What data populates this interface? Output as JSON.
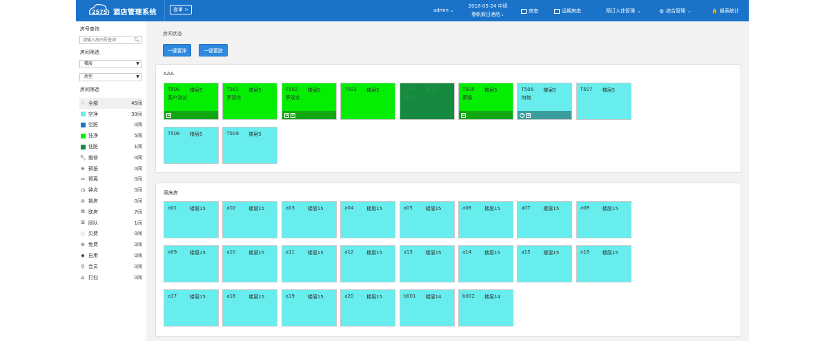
{
  "app": {
    "title": "酒店管理系统",
    "audit_label": "夜审 >",
    "user": "admin",
    "date": "2018-05-24 中班",
    "hotel": "春帆假日酒店"
  },
  "topnav": [
    {
      "label": "房态",
      "icon": "grid-icon"
    },
    {
      "label": "远期房态",
      "icon": "calendar-icon"
    },
    {
      "label": "预订入住管理",
      "icon": "person-icon"
    },
    {
      "label": "综合管理",
      "icon": "gear-icon"
    },
    {
      "label": "报表统计",
      "icon": "lock-icon"
    }
  ],
  "sidebar": {
    "room_query_label": "房号查询",
    "room_query_placeholder": "请输入房间号查询",
    "room_filter_label": "房间筛选",
    "floor_select": "楼层",
    "type_select": "房型",
    "status_filter_label": "房间筛选",
    "filters": [
      {
        "label": "全部",
        "count": "45间",
        "icon": "all-icon"
      },
      {
        "label": "空净",
        "count": "39间",
        "color": "#67eded"
      },
      {
        "label": "空脏",
        "count": "0间",
        "color": "#1b73c9"
      },
      {
        "label": "住净",
        "count": "5间",
        "color": "#04ee04"
      },
      {
        "label": "住脏",
        "count": "1间",
        "color": "#168a3f"
      },
      {
        "label": "维修",
        "count": "0间",
        "icon": "wrench-icon"
      },
      {
        "label": "预抵",
        "count": "0间",
        "icon": "arrive-icon"
      },
      {
        "label": "预离",
        "count": "0间",
        "icon": "depart-icon"
      },
      {
        "label": "钟点",
        "count": "0间",
        "icon": "clock-icon"
      },
      {
        "label": "锁房",
        "count": "0间",
        "icon": "lock-room-icon"
      },
      {
        "label": "联房",
        "count": "7间",
        "icon": "link-icon"
      },
      {
        "label": "团队",
        "count": "1间",
        "icon": "team-icon"
      },
      {
        "label": "欠费",
        "count": "0间",
        "icon": "debt-icon"
      },
      {
        "label": "免费",
        "count": "0间",
        "icon": "free-icon"
      },
      {
        "label": "自用",
        "count": "0间",
        "icon": "self-use-icon"
      },
      {
        "label": "会员",
        "count": "0间",
        "icon": "member-icon"
      },
      {
        "label": "打扫",
        "count": "0间",
        "icon": "clean-icon"
      }
    ]
  },
  "main": {
    "title": "房间状态",
    "btn_clean": "一键置净",
    "btn_dirty": "一键置脏",
    "sections": [
      {
        "title": "AAA",
        "rooms": [
          {
            "no": "T500",
            "floor": "楼层5",
            "guest": "客户测试",
            "status": "inclean",
            "badges": [
              "link"
            ]
          },
          {
            "no": "T501",
            "floor": "楼层5",
            "guest": "罗双龙",
            "status": "inclean",
            "badges": []
          },
          {
            "no": "T502",
            "floor": "楼层5",
            "guest": "罗双龙",
            "status": "inclean",
            "badges": [
              "link",
              "team"
            ]
          },
          {
            "no": "T503",
            "floor": "楼层5",
            "guest": "",
            "status": "inclean",
            "badges": []
          },
          {
            "no": "T504",
            "floor": "楼层5",
            "guest": "测试",
            "status": "indirty",
            "badges": []
          },
          {
            "no": "T505",
            "floor": "楼层5",
            "guest": "蔡锦",
            "status": "inclean",
            "badges": [
              "link"
            ]
          },
          {
            "no": "T506",
            "floor": "楼层5",
            "guest": "何物",
            "status": "clean",
            "badges": [
              "arrive",
              "link"
            ]
          },
          {
            "no": "T507",
            "floor": "楼层5",
            "guest": "",
            "status": "clean",
            "badges": []
          },
          {
            "no": "T508",
            "floor": "楼层5",
            "guest": "",
            "status": "clean",
            "badges": []
          },
          {
            "no": "T509",
            "floor": "楼层5",
            "guest": "",
            "status": "clean",
            "badges": []
          }
        ]
      },
      {
        "title": "双床房",
        "rooms": [
          {
            "no": "a01",
            "floor": "楼层15",
            "guest": "",
            "status": "clean",
            "badges": []
          },
          {
            "no": "a02",
            "floor": "楼层15",
            "guest": "",
            "status": "clean",
            "badges": []
          },
          {
            "no": "a03",
            "floor": "楼层15",
            "guest": "",
            "status": "clean",
            "badges": []
          },
          {
            "no": "a04",
            "floor": "楼层15",
            "guest": "",
            "status": "clean",
            "badges": []
          },
          {
            "no": "a05",
            "floor": "楼层15",
            "guest": "",
            "status": "clean",
            "badges": []
          },
          {
            "no": "a06",
            "floor": "楼层15",
            "guest": "",
            "status": "clean",
            "badges": []
          },
          {
            "no": "a07",
            "floor": "楼层15",
            "guest": "",
            "status": "clean",
            "badges": []
          },
          {
            "no": "a08",
            "floor": "楼层15",
            "guest": "",
            "status": "clean",
            "badges": []
          },
          {
            "no": "a09",
            "floor": "楼层15",
            "guest": "",
            "status": "clean",
            "badges": []
          },
          {
            "no": "a10",
            "floor": "楼层15",
            "guest": "",
            "status": "clean",
            "badges": []
          },
          {
            "no": "a11",
            "floor": "楼层15",
            "guest": "",
            "status": "clean",
            "badges": []
          },
          {
            "no": "a12",
            "floor": "楼层15",
            "guest": "",
            "status": "clean",
            "badges": []
          },
          {
            "no": "a13",
            "floor": "楼层15",
            "guest": "",
            "status": "clean",
            "badges": []
          },
          {
            "no": "a14",
            "floor": "楼层15",
            "guest": "",
            "status": "clean",
            "badges": []
          },
          {
            "no": "a15",
            "floor": "楼层15",
            "guest": "",
            "status": "clean",
            "badges": []
          },
          {
            "no": "a16",
            "floor": "楼层15",
            "guest": "",
            "status": "clean",
            "badges": []
          },
          {
            "no": "a17",
            "floor": "楼层15",
            "guest": "",
            "status": "clean",
            "badges": []
          },
          {
            "no": "a18",
            "floor": "楼层15",
            "guest": "",
            "status": "clean",
            "badges": []
          },
          {
            "no": "a19",
            "floor": "楼层15",
            "guest": "",
            "status": "clean",
            "badges": []
          },
          {
            "no": "a20",
            "floor": "楼层15",
            "guest": "",
            "status": "clean",
            "badges": []
          },
          {
            "no": "b001",
            "floor": "楼层14",
            "guest": "",
            "status": "clean",
            "badges": []
          },
          {
            "no": "b002",
            "floor": "楼层14",
            "guest": "",
            "status": "clean",
            "badges": []
          }
        ]
      }
    ]
  }
}
